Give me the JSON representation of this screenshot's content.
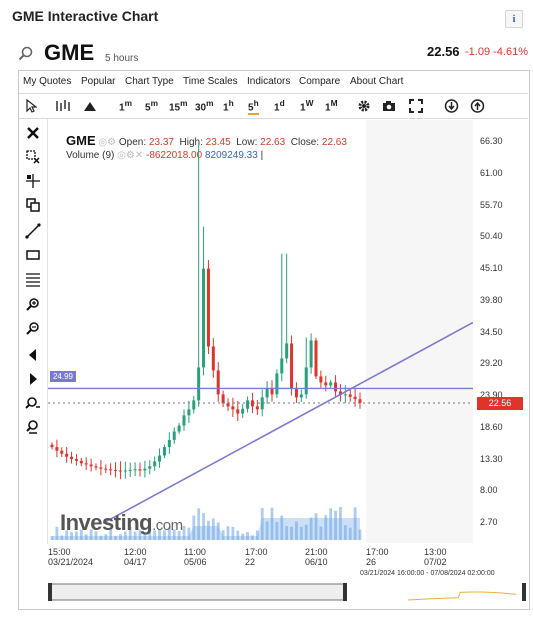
{
  "header": {
    "title": "GME Interactive Chart",
    "info_icon": "i",
    "symbol": "GME",
    "period": "5 hours",
    "last_price": "22.56",
    "change": "-1.09",
    "change_pct": "-4.61%"
  },
  "menu": [
    "My Quotes",
    "Popular",
    "Chart Type",
    "Time Scales",
    "Indicators",
    "Compare",
    "About Chart"
  ],
  "toolbar": {
    "timeframes": [
      {
        "main": "1",
        "sup": "m"
      },
      {
        "main": "5",
        "sup": "m"
      },
      {
        "main": "15",
        "sup": "m"
      },
      {
        "main": "30",
        "sup": "m"
      },
      {
        "main": "1",
        "sup": "h"
      },
      {
        "main": "5",
        "sup": "h"
      },
      {
        "main": "1",
        "sup": "d"
      },
      {
        "main": "1",
        "sup": "W"
      },
      {
        "main": "1",
        "sup": "M"
      }
    ],
    "selected": 5
  },
  "legend": {
    "symbol": "GME",
    "open_label": "Open:",
    "open": "23.37",
    "high_label": "High:",
    "high": "23.45",
    "low_label": "Low:",
    "low": "22.63",
    "close_label": "Close:",
    "close": "22.63",
    "volume_label": "Volume (9)",
    "vol1": "-8622018.00",
    "vol2": "8209249.33",
    "vol_sep": "|"
  },
  "yaxis": [
    "66.30",
    "61.00",
    "55.70",
    "50.40",
    "45.10",
    "39.80",
    "34.50",
    "29.20",
    "23.90",
    "18.60",
    "13.30",
    "8.00",
    "2.70"
  ],
  "price_tag": "22.56",
  "level_tag": "24.99",
  "xaxis": [
    {
      "t": "15:00",
      "d": "03/21/2024"
    },
    {
      "t": "12:00",
      "d": "04/17"
    },
    {
      "t": "11:00",
      "d": "05/06"
    },
    {
      "t": "17:00",
      "d": "22"
    },
    {
      "t": "21:00",
      "d": "06/10"
    },
    {
      "t": "17:00",
      "d": "26"
    },
    {
      "t": "13:00",
      "d": "07/02"
    }
  ],
  "navigator_range": "03/21/2024 16:00:00 - 07/08/2024 02:00:00",
  "logo": {
    "brand": "Investing",
    "suffix": ".com"
  },
  "colors": {
    "up": "#26a17b",
    "down": "#e0332c",
    "trend": "#7b7bd3",
    "volume": "#6aa3e8"
  },
  "chart_data": {
    "type": "candlestick",
    "ylim": [
      0,
      70
    ],
    "level_line": 24.99,
    "last_price": 22.56,
    "closes": [
      15.2,
      14.6,
      14.1,
      13.6,
      13.2,
      12.9,
      12.5,
      12.3,
      12.0,
      11.8,
      11.6,
      11.5,
      11.4,
      11.3,
      11.2,
      11.3,
      11.4,
      11.5,
      11.3,
      11.6,
      12.0,
      12.8,
      13.8,
      15.2,
      16.4,
      17.8,
      18.8,
      20.5,
      21.5,
      23.0,
      28.5,
      45.0,
      32.0,
      28.0,
      24.0,
      22.5,
      22.0,
      21.5,
      20.8,
      21.6,
      23.0,
      22.0,
      21.5,
      23.5,
      25.0,
      24.0,
      27.5,
      30.0,
      32.5,
      25.0,
      23.5,
      24.0,
      28.5,
      33.0,
      27.0,
      26.0,
      25.5,
      26.0,
      24.5,
      23.9,
      24.0,
      23.6,
      23.2,
      22.6
    ]
  }
}
